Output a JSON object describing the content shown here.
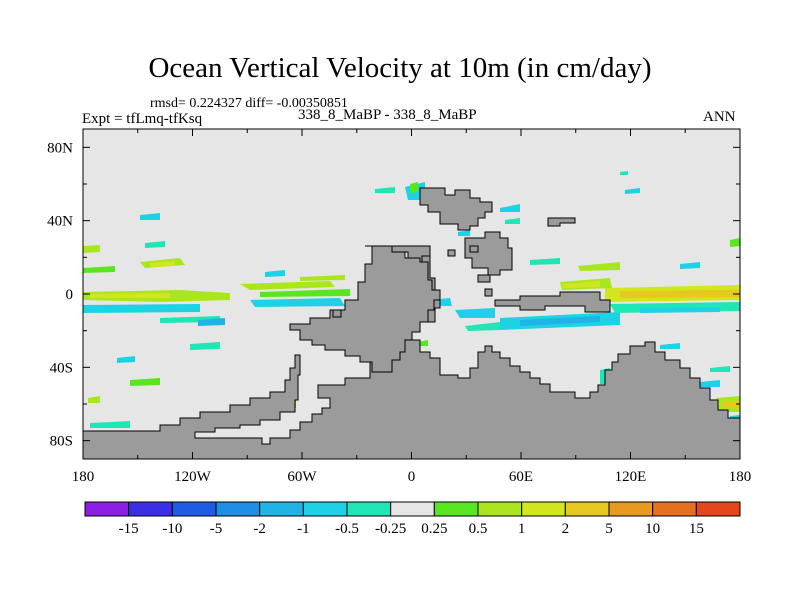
{
  "title": "Ocean Vertical Velocity at 10m (in cm/day)",
  "stats_line": "rmsd= 0.224327 diff= -0.00350851",
  "experiment_label": "Expt = tfLmq-tfKsq",
  "difference_label": "338_8_MaBP - 338_8_MaBP",
  "season_label": "ANN",
  "map": {
    "x_ticks": [
      {
        "lon": -180,
        "label": "180"
      },
      {
        "lon": -120,
        "label": "120W"
      },
      {
        "lon": -60,
        "label": "60W"
      },
      {
        "lon": 0,
        "label": "0"
      },
      {
        "lon": 60,
        "label": "60E"
      },
      {
        "lon": 120,
        "label": "120E"
      },
      {
        "lon": 180,
        "label": "180"
      }
    ],
    "y_ticks": [
      {
        "lat": 80,
        "label": "80N"
      },
      {
        "lat": 40,
        "label": "40N"
      },
      {
        "lat": 0,
        "label": "0"
      },
      {
        "lat": -40,
        "label": "40S"
      },
      {
        "lat": -80,
        "label": "80S"
      }
    ],
    "lon_range": [
      -180,
      180
    ],
    "lat_range": [
      -90,
      90
    ],
    "background_color": "#e6e6e6",
    "land_color": "#9b9b9b"
  },
  "colorbar": {
    "colors": [
      "#8c1ee6",
      "#3c2ee6",
      "#1e5ce6",
      "#1e8ee6",
      "#1eb4e6",
      "#1ed2e6",
      "#1ee6b4",
      "#e6e6e6",
      "#5ae61e",
      "#aae61e",
      "#d2e61e",
      "#e6c81e",
      "#e69b1e",
      "#e6701e",
      "#e6461e"
    ],
    "labels": [
      "-15",
      "-10",
      "-5",
      "-2",
      "-1",
      "-0.5",
      "-0.25",
      "0.25",
      "0.5",
      "1",
      "2",
      "5",
      "10",
      "15"
    ]
  }
}
